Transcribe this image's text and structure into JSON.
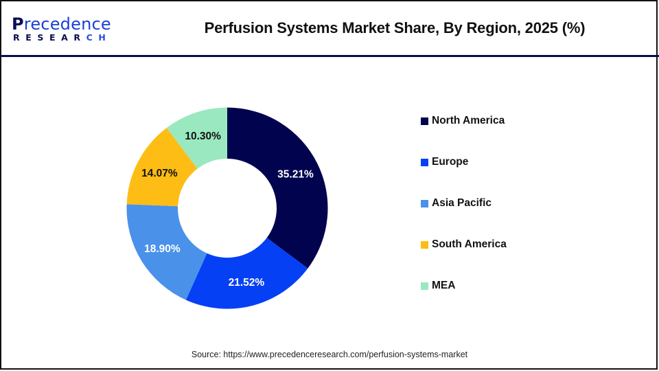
{
  "header": {
    "logo": {
      "line1_initial": "P",
      "line1_rest": "recedence",
      "line2_main": "RESEAR",
      "line2_accent": "CH"
    },
    "title": "Perfusion Systems Market Share, By Region, 2025 (%)"
  },
  "footer": {
    "source": "Source: https://www.precedenceresearch.com/perfusion-systems-market"
  },
  "colors": {
    "north_america": "#02034f",
    "europe": "#0540f5",
    "asia_pacific": "#4a91ea",
    "south_america": "#fdbd14",
    "mea": "#9ae8c0",
    "separator": "#0b0e45"
  },
  "chart_data": {
    "type": "pie",
    "subtype": "donut",
    "title": "Perfusion Systems Market Share, By Region, 2025 (%)",
    "categories": [
      "North America",
      "Europe",
      "Asia Pacific",
      "South America",
      "MEA"
    ],
    "values": [
      35.21,
      21.52,
      18.9,
      14.07,
      10.3
    ],
    "labels": [
      "35.21%",
      "21.52%",
      "18.90%",
      "14.07%",
      "10.30%"
    ],
    "colors": [
      "#02034f",
      "#0540f5",
      "#4a91ea",
      "#fdbd14",
      "#9ae8c0"
    ],
    "label_colors": [
      "#ffffff",
      "#ffffff",
      "#ffffff",
      "#111111",
      "#111111"
    ],
    "start_angle": "12 o'clock, clockwise",
    "legend_position": "right",
    "unit": "%"
  },
  "legend": {
    "items": [
      {
        "label": "North America",
        "color": "#02034f"
      },
      {
        "label": "Europe",
        "color": "#0540f5"
      },
      {
        "label": "Asia Pacific",
        "color": "#4a91ea"
      },
      {
        "label": "South America",
        "color": "#fdbd14"
      },
      {
        "label": "MEA",
        "color": "#9ae8c0"
      }
    ]
  }
}
